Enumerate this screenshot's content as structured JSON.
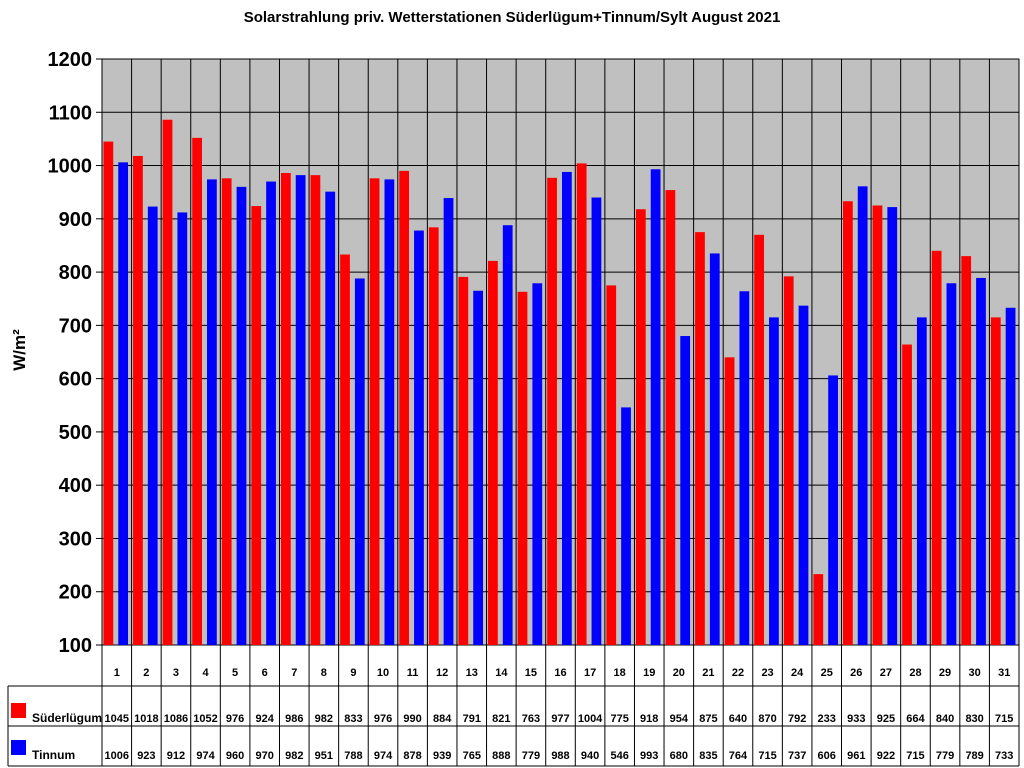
{
  "title": "Solarstrahlung priv. Wetterstationen Süderlügum+Tinnum/Sylt August 2021",
  "colors": {
    "plot_bg": "#C0C0C0",
    "series1": "#FF0000",
    "series2": "#0000FF",
    "grid": "#000000"
  },
  "chart_data": {
    "type": "bar",
    "title": "Solarstrahlung priv. Wetterstationen Süderlügum+Tinnum/Sylt August 2021",
    "xlabel": "",
    "ylabel": "W/m²",
    "ylim": [
      100,
      1200
    ],
    "yticks": [
      100,
      200,
      300,
      400,
      500,
      600,
      700,
      800,
      900,
      1000,
      1100,
      1200
    ],
    "grid": true,
    "legend_position": "data-table-bottom",
    "categories": [
      "1",
      "2",
      "3",
      "4",
      "5",
      "6",
      "7",
      "8",
      "9",
      "10",
      "11",
      "12",
      "13",
      "14",
      "15",
      "16",
      "17",
      "18",
      "19",
      "20",
      "21",
      "22",
      "23",
      "24",
      "25",
      "26",
      "27",
      "28",
      "29",
      "30",
      "31"
    ],
    "series": [
      {
        "name": "Süderlügum",
        "color": "#FF0000",
        "values": [
          1045,
          1018,
          1086,
          1052,
          976,
          924,
          986,
          982,
          833,
          976,
          990,
          884,
          791,
          821,
          763,
          977,
          1004,
          775,
          918,
          954,
          875,
          640,
          870,
          792,
          233,
          933,
          925,
          664,
          840,
          830,
          715
        ]
      },
      {
        "name": "Tinnum",
        "color": "#0000FF",
        "values": [
          1006,
          923,
          912,
          974,
          960,
          970,
          982,
          951,
          788,
          974,
          878,
          939,
          765,
          888,
          779,
          988,
          940,
          546,
          993,
          680,
          835,
          764,
          715,
          737,
          606,
          961,
          922,
          715,
          779,
          789,
          733
        ]
      }
    ]
  }
}
